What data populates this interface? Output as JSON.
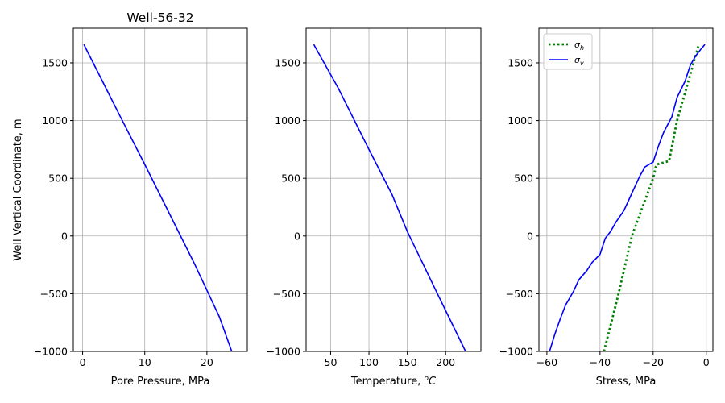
{
  "chart_data": [
    {
      "type": "line",
      "title": "Well-56-32",
      "xlabel": "Pore Pressure, MPa",
      "ylabel": "Well Vertical Coordinate, m",
      "xlim": [
        -1.5,
        26.5
      ],
      "ylim": [
        -1000,
        1800
      ],
      "xticks": [
        0,
        10,
        20
      ],
      "yticks": [
        -1000,
        -500,
        0,
        500,
        1000,
        1500
      ],
      "grid": true,
      "series": [
        {
          "color": "#0000ff",
          "style": "solid",
          "points": [
            [
              0.2,
              1660
            ],
            [
              6,
              1040
            ],
            [
              10,
              620
            ],
            [
              14,
              190
            ],
            [
              18,
              -240
            ],
            [
              22,
              -700
            ],
            [
              24,
              -1000
            ]
          ]
        }
      ]
    },
    {
      "type": "line",
      "title": "",
      "xlabel": "Temperature, °C",
      "ylabel": "",
      "xlim": [
        18,
        246
      ],
      "ylim": [
        -1000,
        1800
      ],
      "xticks": [
        50,
        100,
        150,
        200
      ],
      "yticks": [
        -1000,
        -500,
        0,
        500,
        1000,
        1500
      ],
      "grid": true,
      "series": [
        {
          "color": "#0000ff",
          "style": "solid",
          "points": [
            [
              28,
              1660
            ],
            [
              60,
              1280
            ],
            [
              100,
              750
            ],
            [
              130,
              360
            ],
            [
              150,
              40
            ],
            [
              190,
              -510
            ],
            [
              226,
              -1000
            ]
          ]
        }
      ]
    },
    {
      "type": "line",
      "title": "",
      "xlabel": "Stress, MPa",
      "ylabel": "",
      "xlim": [
        -63,
        2.5
      ],
      "ylim": [
        -1000,
        1800
      ],
      "xticks": [
        -60,
        -40,
        -20,
        0
      ],
      "yticks": [
        -1000,
        -500,
        0,
        500,
        1000,
        1500
      ],
      "grid": true,
      "legend": {
        "position": "top-left",
        "entries": [
          "σh",
          "σv"
        ]
      },
      "series": [
        {
          "name": "σh",
          "color": "#008000",
          "style": "dotted",
          "points": [
            [
              -38.5,
              -1000
            ],
            [
              -33,
              -500
            ],
            [
              -28,
              0
            ],
            [
              -20,
              500
            ],
            [
              -19,
              600
            ],
            [
              -18.5,
              620
            ],
            [
              -14,
              650
            ],
            [
              -11,
              1000
            ],
            [
              -6,
              1400
            ],
            [
              -2.8,
              1660
            ]
          ]
        },
        {
          "name": "σv",
          "color": "#0000ff",
          "style": "solid",
          "points": [
            [
              -59,
              -1000
            ],
            [
              -57,
              -850
            ],
            [
              -55,
              -720
            ],
            [
              -53,
              -600
            ],
            [
              -50,
              -480
            ],
            [
              -48,
              -380
            ],
            [
              -45,
              -300
            ],
            [
              -43,
              -230
            ],
            [
              -40,
              -160
            ],
            [
              -38,
              -20
            ],
            [
              -36,
              40
            ],
            [
              -34,
              120
            ],
            [
              -31,
              220
            ],
            [
              -29,
              320
            ],
            [
              -27,
              420
            ],
            [
              -25,
              520
            ],
            [
              -23,
              600
            ],
            [
              -20,
              640
            ],
            [
              -18,
              780
            ],
            [
              -16,
              900
            ],
            [
              -13,
              1030
            ],
            [
              -11,
              1200
            ],
            [
              -8,
              1340
            ],
            [
              -6,
              1480
            ],
            [
              -4,
              1560
            ],
            [
              -2,
              1620
            ],
            [
              -0.5,
              1660
            ]
          ]
        }
      ]
    }
  ]
}
